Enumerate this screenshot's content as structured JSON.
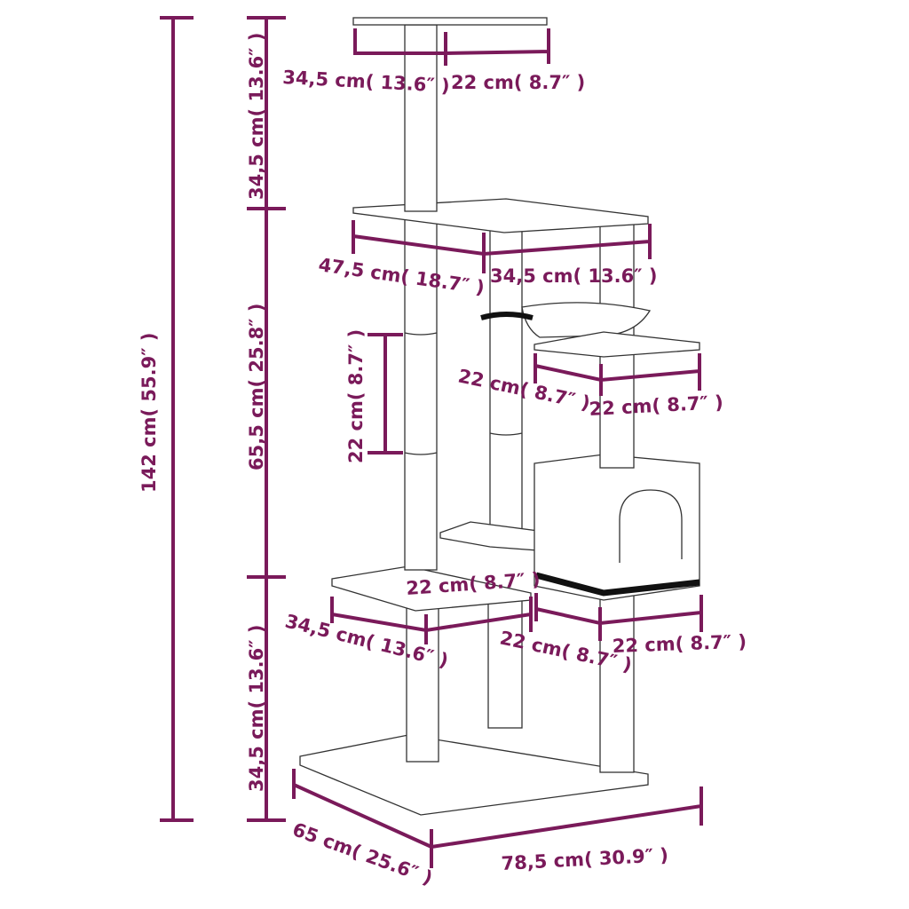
{
  "colors": {
    "dimension": "#7a1a5a",
    "outline": "#333333"
  },
  "labels": {
    "top_depth": "34,5 cm( 13.6″ )",
    "top_width": "22 cm( 8.7″ )",
    "top_height": "34,5 cm( 13.6″ )",
    "mid_width": "47,5 cm( 18.7″ )",
    "mid_depth": "34,5 cm( 13.6″ )",
    "mid_height": "65,5 cm( 25.8″ )",
    "post_segment": "22 cm( 8.7″ )",
    "shelf_depth": "22 cm( 8.7″ )",
    "shelf_width": "22 cm( 8.7″ )",
    "total_height": "142 cm( 55.9″ )",
    "low_platform_depth": "22 cm( 8.7″ )",
    "low_platform_width": "34,5 cm( 13.6″ )",
    "house_depth": "22 cm( 8.7″ )",
    "house_width": "22 cm( 8.7″ )",
    "low_height": "34,5 cm( 13.6″ )",
    "base_depth": "65 cm( 25.6″ )",
    "base_width": "78,5 cm( 30.9″ )"
  }
}
